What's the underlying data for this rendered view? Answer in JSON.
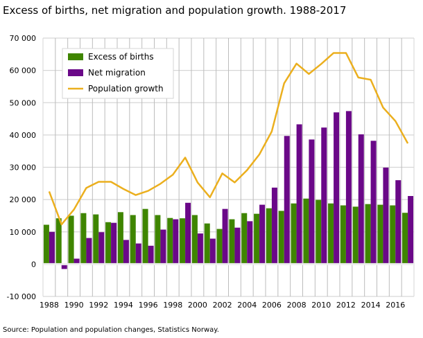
{
  "chart_data": {
    "type": "bar",
    "title": "Excess of births, net migration and population growth. 1988-2017",
    "source": "Source: Population and population changes, Statistics Norway.",
    "xlabel": "",
    "ylabel": "",
    "ylim": [
      -10000,
      70000
    ],
    "yticks": [
      "-10 000",
      "0",
      "10 000",
      "20 000",
      "30 000",
      "40 000",
      "50 000",
      "60 000",
      "70 000"
    ],
    "ytick_values": [
      -10000,
      0,
      10000,
      20000,
      30000,
      40000,
      50000,
      60000,
      70000
    ],
    "xtick_labels": [
      "1988",
      "1990",
      "1992",
      "1994",
      "1996",
      "1998",
      "2000",
      "2002",
      "2004",
      "2006",
      "2008",
      "2010",
      "2012",
      "2014",
      "2016"
    ],
    "grid": true,
    "legend_position": "top-left",
    "categories": [
      1988,
      1989,
      1990,
      1991,
      1992,
      1993,
      1994,
      1995,
      1996,
      1997,
      1998,
      1999,
      2000,
      2001,
      2002,
      2003,
      2004,
      2005,
      2006,
      2007,
      2008,
      2009,
      2010,
      2011,
      2012,
      2013,
      2014,
      2015,
      2016,
      2017
    ],
    "series": [
      {
        "name": "Excess of births",
        "type": "bar",
        "color": "#3f8500",
        "values": [
          12200,
          14200,
          15000,
          15800,
          15400,
          13000,
          16100,
          15200,
          17100,
          15200,
          14300,
          14200,
          15200,
          12600,
          10900,
          13900,
          15800,
          15600,
          17300,
          16500,
          18800,
          20300,
          19900,
          18800,
          18200,
          17800,
          18600,
          18400,
          18200,
          15900
        ]
      },
      {
        "name": "Net migration",
        "type": "bar",
        "color": "#6a0888",
        "values": [
          10000,
          -1500,
          1700,
          8100,
          9900,
          12800,
          7500,
          6400,
          5700,
          10700,
          13900,
          19000,
          9500,
          7900,
          17100,
          11300,
          13300,
          18400,
          23700,
          39700,
          43300,
          38600,
          42300,
          47000,
          47400,
          40200,
          38200,
          29900,
          26000,
          21100
        ]
      },
      {
        "name": "Population growth",
        "type": "line",
        "color": "#ebaf1e",
        "values": [
          22500,
          12300,
          16900,
          23600,
          25500,
          25500,
          23300,
          21400,
          22700,
          24900,
          27700,
          33000,
          25300,
          20700,
          28100,
          25300,
          29100,
          34000,
          41100,
          56000,
          62100,
          58900,
          62000,
          65400,
          65400,
          57800,
          57100,
          48500,
          44300,
          37400
        ]
      }
    ]
  }
}
